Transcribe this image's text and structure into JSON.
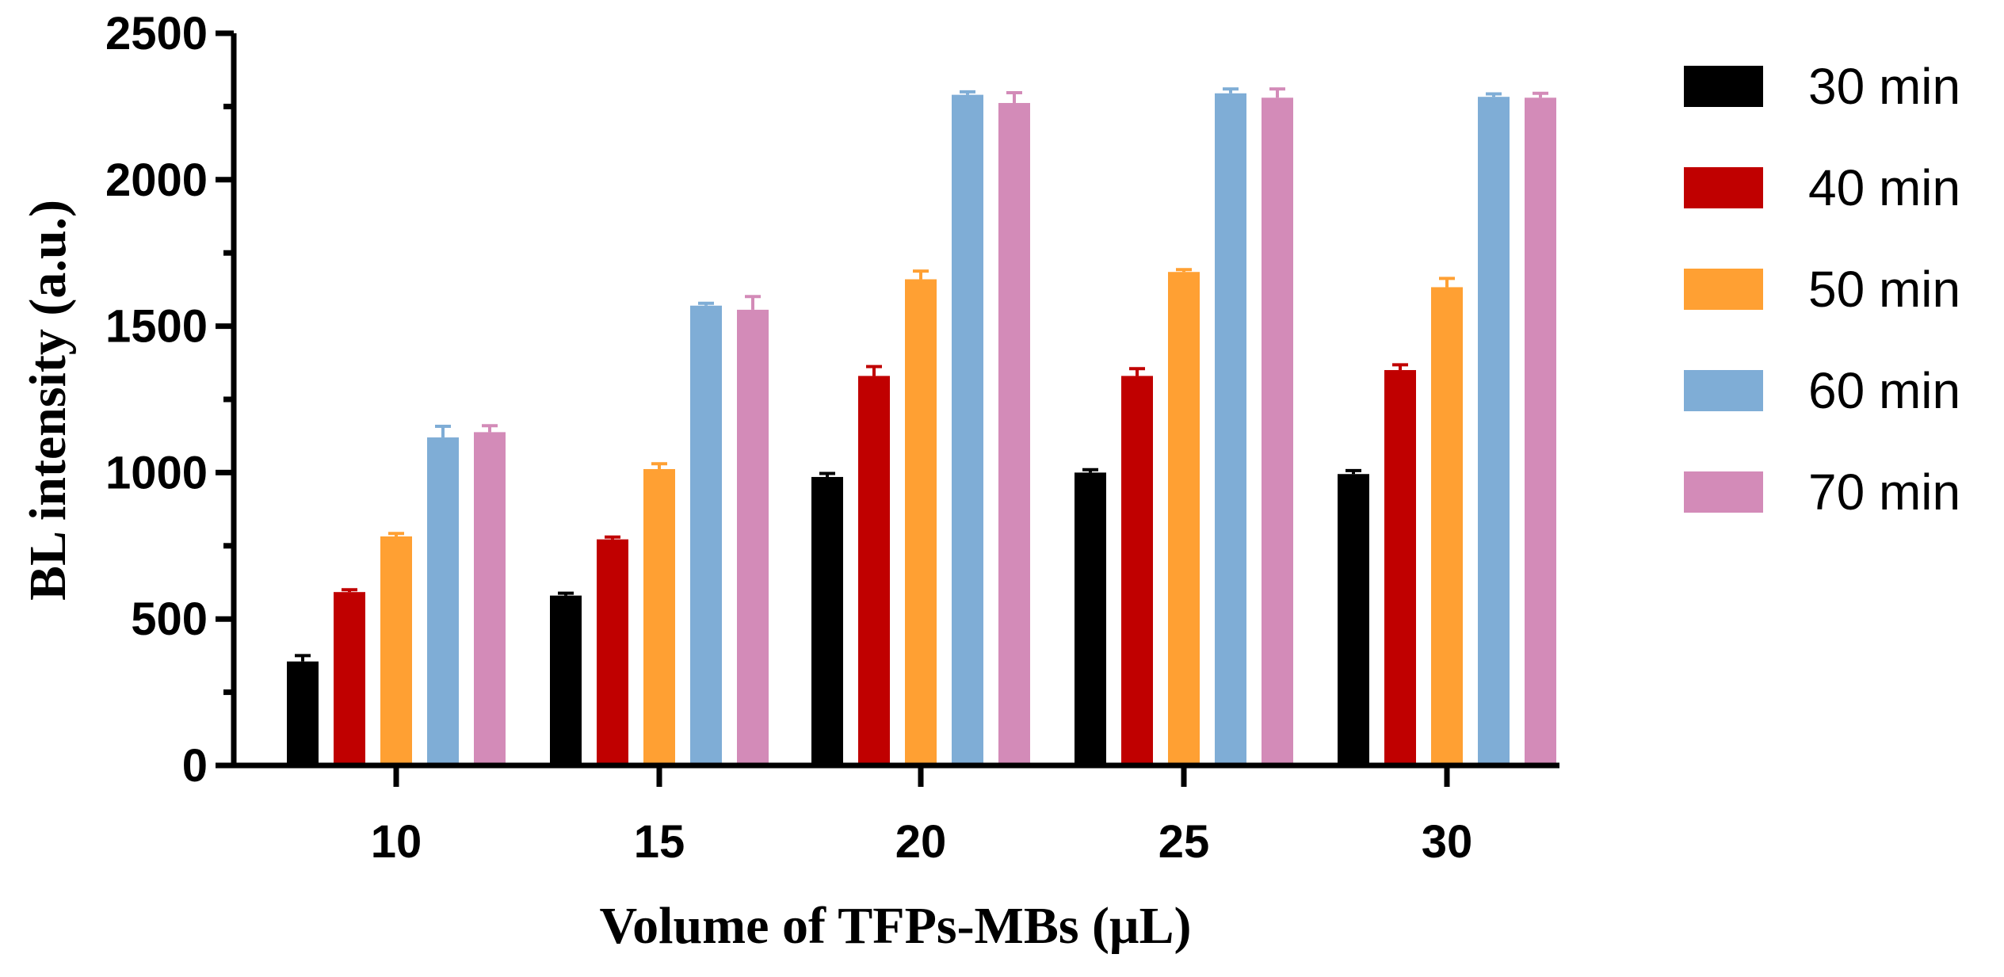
{
  "chart_data": {
    "type": "bar",
    "title": "",
    "xlabel": "Volume of TFPs-MBs (μL)",
    "ylabel": "BL intensity (a.u.)",
    "ylim": [
      0,
      2500
    ],
    "yticks": [
      "0",
      "500",
      "1000",
      "1500",
      "2000",
      "2500"
    ],
    "categories": [
      "10",
      "15",
      "20",
      "25",
      "30"
    ],
    "series": [
      {
        "name": "30 min",
        "color": "#000000",
        "values": [
          355,
          580,
          985,
          1000,
          995
        ],
        "errors": [
          20,
          8,
          12,
          10,
          12
        ]
      },
      {
        "name": "40 min",
        "color": "#c00000",
        "values": [
          592,
          772,
          1330,
          1330,
          1350
        ],
        "errors": [
          8,
          8,
          32,
          25,
          18
        ]
      },
      {
        "name": "50 min",
        "color": "#ffa033",
        "values": [
          782,
          1012,
          1660,
          1685,
          1633
        ],
        "errors": [
          10,
          18,
          28,
          8,
          30
        ]
      },
      {
        "name": "60 min",
        "color": "#7fadd6",
        "values": [
          1120,
          1570,
          2290,
          2295,
          2283
        ],
        "errors": [
          38,
          8,
          10,
          15,
          10
        ]
      },
      {
        "name": "70 min",
        "color": "#d38bb8",
        "values": [
          1138,
          1556,
          2262,
          2280,
          2280
        ],
        "errors": [
          22,
          45,
          35,
          30,
          15
        ]
      }
    ],
    "legend_position": "right"
  }
}
